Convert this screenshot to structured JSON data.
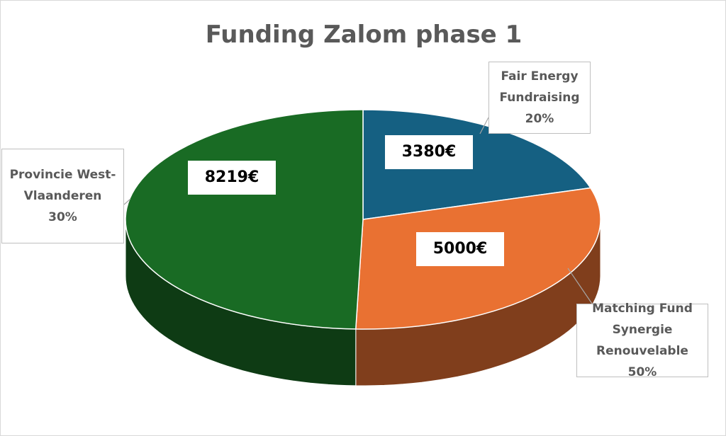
{
  "chart_data": {
    "type": "pie",
    "title": "Funding Zalom phase 1",
    "categories": [
      "Fair Energy Fundraising",
      "Provincie West-Vlaanderen",
      "Matching Fund Synergie Renouvelable"
    ],
    "values": [
      3380,
      5000,
      8219
    ],
    "value_labels": [
      "3380€",
      "5000€",
      "8219€"
    ],
    "percentages": [
      20,
      30,
      50
    ],
    "percentage_labels": [
      "20%",
      "30%",
      "50%"
    ],
    "colors": [
      "#156082",
      "#e97132",
      "#196b24"
    ]
  }
}
